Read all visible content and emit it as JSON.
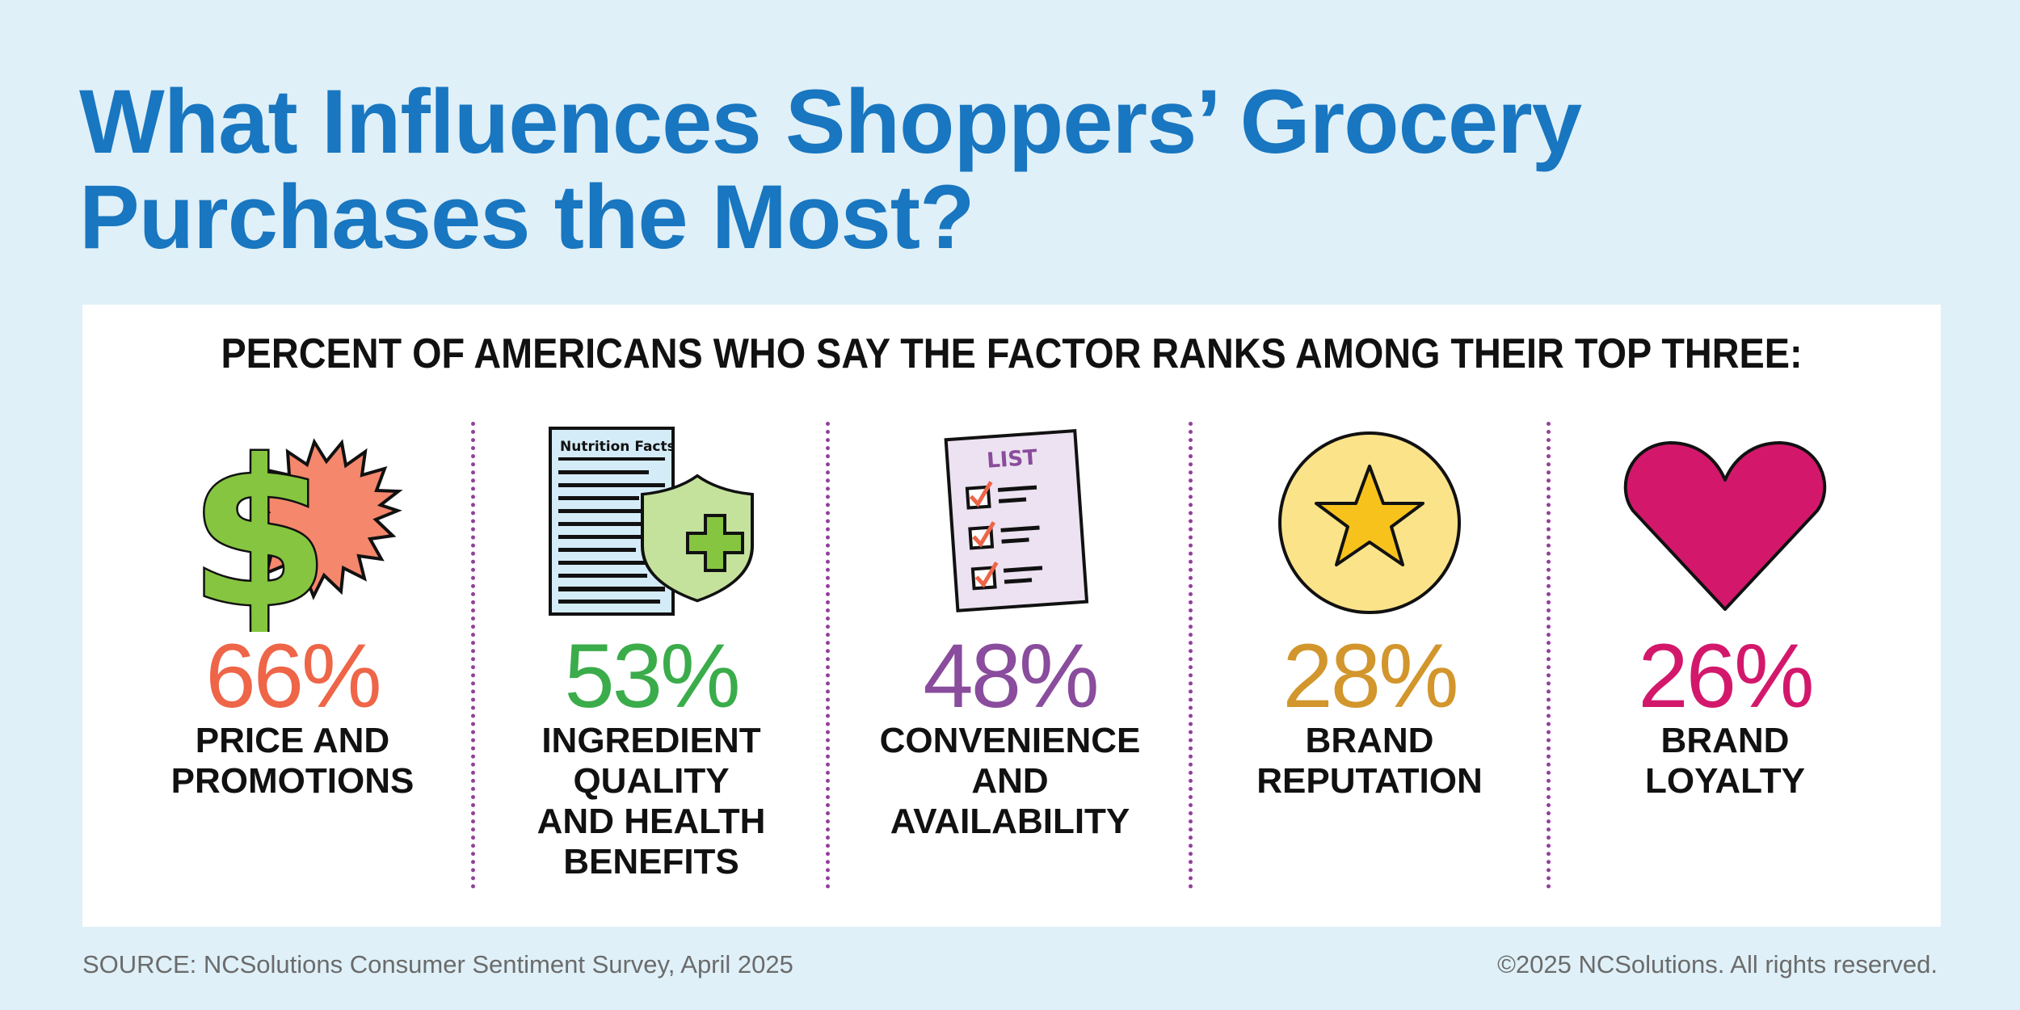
{
  "title_line1": "What Influences Shoppers’ Grocery",
  "title_line2": "Purchases the Most?",
  "subtitle": "PERCENT OF AMERICANS WHO SAY THE FACTOR RANKS AMONG THEIR TOP THREE:",
  "factors": [
    {
      "percent": "66%",
      "label": "PRICE AND\nPROMOTIONS",
      "color": "#ee6548",
      "icon": "dollar-sale-icon"
    },
    {
      "percent": "53%",
      "label": "INGREDIENT\nQUALITY\nAND HEALTH\nBENEFITS",
      "color": "#3aac4a",
      "icon": "nutrition-shield-icon",
      "icon_text": "Nutrition Facts"
    },
    {
      "percent": "48%",
      "label": "CONVENIENCE\nAND\nAVAILABILITY",
      "color": "#8a4c9c",
      "icon": "checklist-icon",
      "icon_text": "LIST"
    },
    {
      "percent": "28%",
      "label": "BRAND\nREPUTATION",
      "color": "#d2962c",
      "icon": "star-icon"
    },
    {
      "percent": "26%",
      "label": "BRAND\nLOYALTY",
      "color": "#d3186c",
      "icon": "heart-icon"
    }
  ],
  "chart_data": {
    "type": "table",
    "title": "What Influences Shoppers’ Grocery Purchases the Most?",
    "subtitle": "PERCENT OF AMERICANS WHO SAY THE FACTOR RANKS AMONG THEIR TOP THREE:",
    "categories": [
      "PRICE AND PROMOTIONS",
      "INGREDIENT QUALITY AND HEALTH BENEFITS",
      "CONVENIENCE AND AVAILABILITY",
      "BRAND REPUTATION",
      "BRAND LOYALTY"
    ],
    "values": [
      66,
      53,
      48,
      28,
      26
    ],
    "unit": "%"
  },
  "footer": {
    "source": "SOURCE: NCSolutions Consumer Sentiment Survey, April 2025",
    "copyright": "©2025 NCSolutions. All rights reserved."
  }
}
